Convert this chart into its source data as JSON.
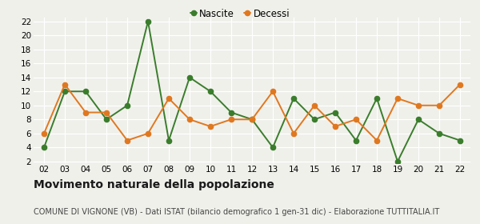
{
  "years": [
    "02",
    "03",
    "04",
    "05",
    "06",
    "07",
    "08",
    "09",
    "10",
    "11",
    "12",
    "13",
    "14",
    "15",
    "16",
    "17",
    "18",
    "19",
    "20",
    "21",
    "22"
  ],
  "nascite": [
    4,
    12,
    12,
    8,
    10,
    22,
    5,
    14,
    12,
    9,
    8,
    4,
    11,
    8,
    9,
    5,
    11,
    2,
    8,
    6,
    5
  ],
  "decessi": [
    6,
    13,
    9,
    9,
    5,
    6,
    11,
    8,
    7,
    8,
    8,
    12,
    6,
    10,
    7,
    8,
    5,
    11,
    10,
    10,
    13
  ],
  "nascite_color": "#3a7d2c",
  "decessi_color": "#e07820",
  "ylim_min": 2,
  "ylim_max": 22,
  "yticks": [
    2,
    4,
    6,
    8,
    10,
    12,
    14,
    16,
    18,
    20,
    22
  ],
  "title": "Movimento naturale della popolazione",
  "subtitle": "COMUNE DI VIGNONE (VB) - Dati ISTAT (bilancio demografico 1 gen-31 dic) - Elaborazione TUTTITALIA.IT",
  "legend_nascite": "Nascite",
  "legend_decessi": "Decessi",
  "bg_color": "#f0f0eb",
  "grid_color": "#ffffff",
  "title_fontsize": 10,
  "subtitle_fontsize": 7,
  "tick_fontsize": 7.5,
  "legend_fontsize": 8.5,
  "marker_size": 4.5,
  "line_width": 1.4
}
